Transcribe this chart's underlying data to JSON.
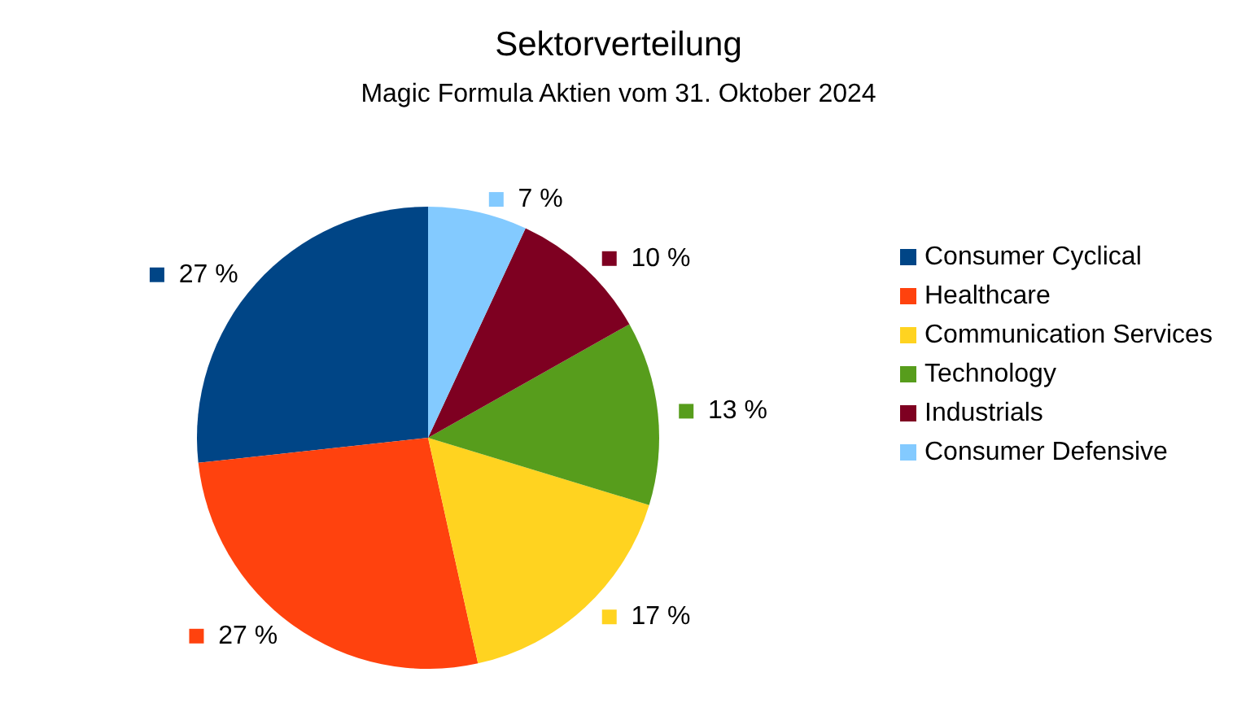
{
  "chart_data": {
    "type": "pie",
    "title": "Sektorverteilung",
    "subtitle": "Magic Formula Aktien vom 31. Oktober 2024",
    "categories": [
      "Consumer Cyclical",
      "Healthcare",
      "Communication Services",
      "Technology",
      "Industrials",
      "Consumer Defensive"
    ],
    "values": [
      27,
      27,
      17,
      13,
      10,
      7
    ],
    "colors": [
      "#004586",
      "#ff420e",
      "#ffd320",
      "#579d1c",
      "#7e0021",
      "#83caff"
    ],
    "value_labels": [
      "27 %",
      "27 %",
      "17 %",
      "13 %",
      "10 %",
      "7 %"
    ],
    "legend": "right"
  }
}
